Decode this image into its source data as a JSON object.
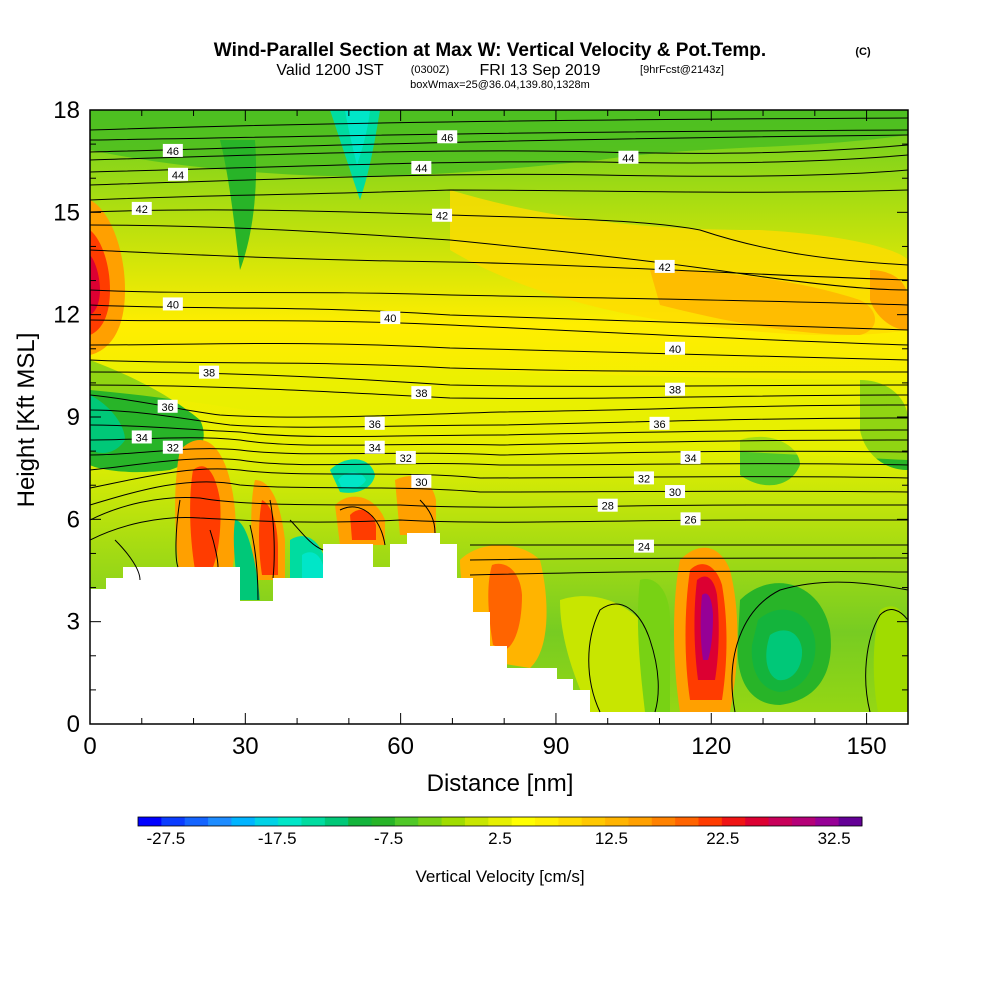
{
  "header": {
    "title_main": "Wind-Parallel Section at Max W: Vertical Velocity & Pot.Temp.",
    "title_mark": "(C)",
    "subtitle_part1": "Valid 1200 JST",
    "subtitle_part2": "(0300Z)",
    "subtitle_part3": "FRI 13 Sep 2019",
    "subtitle_part4": "[9hrFcst@2143z]",
    "subtitle_line2": "boxWmax=25@36.04,139.80,1328m"
  },
  "chart_data": {
    "type": "heatmap",
    "xlabel": "Distance [nm]",
    "ylabel": "Height [Kft MSL]",
    "xlim": [
      0,
      158
    ],
    "ylim": [
      0,
      18
    ],
    "x_ticks": [
      "0",
      "30",
      "60",
      "90",
      "120",
      "150"
    ],
    "x_tick_values": [
      0,
      30,
      60,
      90,
      120,
      150
    ],
    "y_ticks": [
      "0",
      "3",
      "6",
      "9",
      "12",
      "15",
      "18"
    ],
    "y_tick_values": [
      0,
      3,
      6,
      9,
      12,
      15,
      18
    ],
    "colorbar": {
      "label": "Vertical Velocity [cm/s]",
      "tick_labels": [
        "-27.5",
        "-17.5",
        "-7.5",
        "2.5",
        "12.5",
        "22.5",
        "32.5"
      ],
      "min": -30,
      "max": 35,
      "step": 2.5,
      "colors": [
        "#0000ff",
        "#0a3cff",
        "#1464ff",
        "#1e8cff",
        "#00b4ff",
        "#00d2e6",
        "#00e6c8",
        "#00dca0",
        "#00c878",
        "#14b43c",
        "#28b428",
        "#50c828",
        "#78d214",
        "#a0dc00",
        "#c8e600",
        "#e6f000",
        "#ffff00",
        "#fff000",
        "#ffdc00",
        "#ffc800",
        "#ffb400",
        "#ffa000",
        "#ff8200",
        "#ff6400",
        "#ff3c00",
        "#f01414",
        "#dc0032",
        "#c8005a",
        "#b40078",
        "#960096",
        "#640096"
      ]
    },
    "isentrope_labels": [
      {
        "x": 16,
        "y": 16.8,
        "text": "46"
      },
      {
        "x": 69,
        "y": 17.2,
        "text": "46"
      },
      {
        "x": 17,
        "y": 16.1,
        "text": "44"
      },
      {
        "x": 64,
        "y": 16.3,
        "text": "44"
      },
      {
        "x": 104,
        "y": 16.6,
        "text": "44"
      },
      {
        "x": 10,
        "y": 15.1,
        "text": "42"
      },
      {
        "x": 68,
        "y": 14.9,
        "text": "42"
      },
      {
        "x": 111,
        "y": 13.4,
        "text": "42"
      },
      {
        "x": 16,
        "y": 12.3,
        "text": "40"
      },
      {
        "x": 58,
        "y": 11.9,
        "text": "40"
      },
      {
        "x": 113,
        "y": 11.0,
        "text": "40"
      },
      {
        "x": 23,
        "y": 10.3,
        "text": "38"
      },
      {
        "x": 64,
        "y": 9.7,
        "text": "38"
      },
      {
        "x": 113,
        "y": 9.8,
        "text": "38"
      },
      {
        "x": 15,
        "y": 9.3,
        "text": "36"
      },
      {
        "x": 55,
        "y": 8.8,
        "text": "36"
      },
      {
        "x": 110,
        "y": 8.8,
        "text": "36"
      },
      {
        "x": 10,
        "y": 8.4,
        "text": "34"
      },
      {
        "x": 55,
        "y": 8.1,
        "text": "34"
      },
      {
        "x": 116,
        "y": 7.8,
        "text": "34"
      },
      {
        "x": 16,
        "y": 8.1,
        "text": "32"
      },
      {
        "x": 61,
        "y": 7.8,
        "text": "32"
      },
      {
        "x": 107,
        "y": 7.2,
        "text": "32"
      },
      {
        "x": 64,
        "y": 7.1,
        "text": "30"
      },
      {
        "x": 113,
        "y": 6.8,
        "text": "30"
      },
      {
        "x": 100,
        "y": 6.4,
        "text": "28"
      },
      {
        "x": 116,
        "y": 6.0,
        "text": "26"
      },
      {
        "x": 107,
        "y": 5.2,
        "text": "24"
      }
    ]
  }
}
